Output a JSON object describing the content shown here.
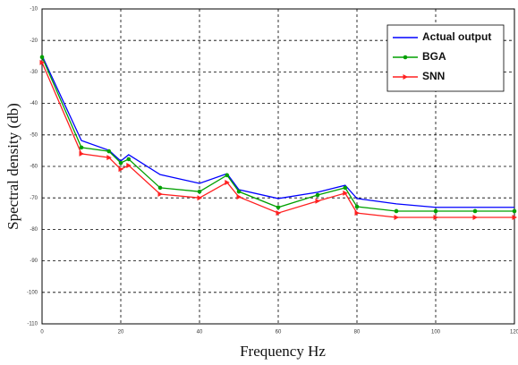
{
  "chart_data": {
    "type": "line",
    "x_label": "Frequency Hz",
    "y_label": "Spectral density (db)",
    "xlim": [
      0,
      120
    ],
    "xticks": [
      0,
      20,
      40,
      60,
      80,
      100,
      120
    ],
    "ylim": [
      -110,
      -10
    ],
    "yticks": [
      -10,
      -20,
      -30,
      -40,
      -50,
      -60,
      -70,
      -80,
      -90,
      -100,
      -110
    ],
    "grid": true,
    "legend": "upper right",
    "x": [
      0,
      10,
      17,
      20,
      22,
      30,
      40,
      47,
      50,
      60,
      70,
      77,
      80,
      90,
      100,
      110,
      120
    ],
    "series": [
      {
        "name": "Actual output",
        "color": "#0000ff",
        "marker": "none",
        "values": [
          -24.8,
          -51.8,
          -54.9,
          -58.3,
          -56.3,
          -62.6,
          -65.4,
          -62.3,
          -67.4,
          -70.2,
          -68.2,
          -66,
          -70.2,
          -71.9,
          -73,
          -73,
          -73
        ]
      },
      {
        "name": "BGA",
        "color": "#00a000",
        "marker": "circle",
        "values": [
          -25.3,
          -54,
          -55.2,
          -58.9,
          -57.7,
          -66.8,
          -68,
          -62.8,
          -68,
          -73,
          -69.1,
          -66.8,
          -72.8,
          -74.2,
          -74.2,
          -74.2,
          -74.2
        ]
      },
      {
        "name": "SNN",
        "color": "#ff2020",
        "marker": "triangle",
        "values": [
          -27,
          -56,
          -57.2,
          -60.9,
          -59.7,
          -68.8,
          -70,
          -65.1,
          -69.7,
          -74.8,
          -71,
          -68.5,
          -74.8,
          -76.2,
          -76.2,
          -76.2,
          -76.2
        ]
      }
    ]
  }
}
